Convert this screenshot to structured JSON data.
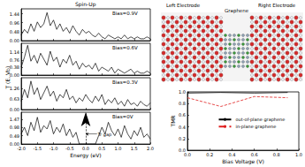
{
  "chart_data": [
    {
      "type": "line",
      "title": "Spin-Up",
      "annotation": "Bias=0.9V",
      "color": "#000000",
      "tick_labels": "y",
      "x": [
        -2,
        -1.9,
        -1.8,
        -1.7,
        -1.6,
        -1.5,
        -1.4,
        -1.3,
        -1.2,
        -1.1,
        -1,
        -0.9,
        -0.8,
        -0.7,
        -0.6,
        -0.5,
        -0.4,
        -0.3,
        -0.2,
        -0.1,
        0,
        0.1,
        0.2,
        0.3,
        0.4,
        0.5,
        0.6,
        0.7,
        0.8,
        0.9,
        1,
        1.1,
        1.2,
        1.3,
        1.4,
        1.5,
        1.6,
        1.7,
        1.8,
        1.9,
        2
      ],
      "values": [
        0.3,
        0.6,
        0.4,
        0.9,
        0.5,
        1.0,
        0.7,
        0.9,
        1.5,
        0.8,
        1.1,
        0.6,
        0.9,
        0.5,
        0.7,
        0.4,
        0.8,
        0.5,
        0.3,
        0.6,
        0.4,
        0.5,
        0.3,
        0.2,
        0.4,
        0.2,
        0.1,
        0.3,
        0.2,
        0.1,
        0.2,
        0.1,
        0.3,
        0.1,
        0.2,
        0.1,
        0.2,
        0.1,
        0.1,
        0.2,
        0.1
      ],
      "xlim": [
        -2,
        2
      ],
      "xticks": [
        {
          "value": -2,
          "label": "-2.0"
        },
        -1.5,
        {
          "value": -1,
          "label": "-1.0"
        },
        -0.5,
        {
          "value": 0,
          "label": "0.0"
        },
        0.5,
        {
          "value": 1,
          "label": "1.0"
        },
        1.5,
        {
          "value": 2,
          "label": "2.0"
        }
      ],
      "ylim": [
        0,
        1.7
      ],
      "yticks": [
        {
          "value": 0,
          "label": "0.00"
        },
        0.48,
        0.96,
        1.44
      ]
    },
    {
      "type": "line",
      "annotation": "Bias=0.6V",
      "color": "#000000",
      "tick_labels": "y",
      "x": [
        -2,
        -1.9,
        -1.8,
        -1.7,
        -1.6,
        -1.5,
        -1.4,
        -1.3,
        -1.2,
        -1.1,
        -1,
        -0.9,
        -0.8,
        -0.7,
        -0.6,
        -0.5,
        -0.4,
        -0.3,
        -0.2,
        -0.1,
        0,
        0.1,
        0.2,
        0.3,
        0.4,
        0.5,
        0.6,
        0.7,
        0.8,
        0.9,
        1,
        1.1,
        1.2,
        1.3,
        1.4,
        1.5,
        1.6,
        1.7,
        1.8,
        1.9,
        2
      ],
      "values": [
        0.4,
        0.9,
        1.5,
        0.7,
        1.0,
        0.6,
        1.1,
        0.8,
        0.5,
        1.2,
        0.7,
        0.9,
        0.4,
        0.8,
        0.6,
        1.0,
        0.5,
        0.7,
        0.3,
        0.6,
        0.4,
        0.5,
        0.3,
        0.6,
        0.2,
        0.4,
        0.3,
        0.2,
        0.4,
        0.1,
        0.3,
        0.2,
        0.1,
        0.2,
        0.3,
        0.1,
        0.2,
        0.1,
        0.1,
        0.2,
        0.1
      ],
      "xlim": [
        -2,
        2
      ],
      "xticks": [
        {
          "value": -2,
          "label": "-2.0"
        },
        -1.5,
        {
          "value": -1,
          "label": "-1.0"
        },
        -0.5,
        {
          "value": 0,
          "label": "0.0"
        },
        0.5,
        {
          "value": 1,
          "label": "1.0"
        },
        1.5,
        {
          "value": 2,
          "label": "2.0"
        }
      ],
      "ylim": [
        0,
        1.6
      ],
      "yticks": [
        {
          "value": 0,
          "label": "0.00"
        },
        0.38,
        0.76,
        1.14
      ]
    },
    {
      "type": "line",
      "annotation": "Bias=0.3V",
      "color": "#000000",
      "tick_labels": "y",
      "x": [
        -2,
        -1.9,
        -1.8,
        -1.7,
        -1.6,
        -1.5,
        -1.4,
        -1.3,
        -1.2,
        -1.1,
        -1,
        -0.9,
        -0.8,
        -0.7,
        -0.6,
        -0.5,
        -0.4,
        -0.3,
        -0.2,
        -0.1,
        0,
        0.1,
        0.2,
        0.3,
        0.4,
        0.5,
        0.6,
        0.7,
        0.8,
        0.9,
        1,
        1.1,
        1.2,
        1.3,
        1.4,
        1.5,
        1.6,
        1.7,
        1.8,
        1.9,
        2
      ],
      "values": [
        0.5,
        1.2,
        0.7,
        1.7,
        0.9,
        1.3,
        0.6,
        1.0,
        1.4,
        0.8,
        1.1,
        0.5,
        0.9,
        0.7,
        1.2,
        0.6,
        0.8,
        0.4,
        0.7,
        0.5,
        0.9,
        0.6,
        0.4,
        0.8,
        0.5,
        0.9,
        0.3,
        0.6,
        0.4,
        0.7,
        0.3,
        0.5,
        0.2,
        0.6,
        0.3,
        0.4,
        0.2,
        0.5,
        0.3,
        0.2,
        0.4
      ],
      "xlim": [
        -2,
        2
      ],
      "xticks": [
        {
          "value": -2,
          "label": "-2.0"
        },
        -1.5,
        {
          "value": -1,
          "label": "-1.0"
        },
        -0.5,
        {
          "value": 0,
          "label": "0.0"
        },
        0.5,
        {
          "value": 1,
          "label": "1.0"
        },
        1.5,
        {
          "value": 2,
          "label": "2.0"
        }
      ],
      "ylim": [
        0,
        1.9
      ],
      "yticks": [
        {
          "value": 0,
          "label": "0.00"
        },
        0.63,
        1.26
      ]
    },
    {
      "type": "line",
      "annotation": "Bias=0V",
      "color": "#000000",
      "xlabel": "Energy (eV)",
      "ylabel": "T (E, Vb)",
      "vline": 0,
      "annotations": [
        {
          "text": "Tr gap",
          "x": 0.35,
          "y": 0.6
        }
      ],
      "x": [
        -2,
        -1.9,
        -1.8,
        -1.7,
        -1.6,
        -1.5,
        -1.4,
        -1.3,
        -1.2,
        -1.1,
        -1,
        -0.9,
        -0.8,
        -0.7,
        -0.6,
        -0.5,
        -0.4,
        -0.3,
        -0.2,
        -0.1,
        0,
        0.1,
        0.2,
        0.3,
        0.4,
        0.5,
        0.6,
        0.7,
        0.8,
        0.9,
        1,
        1.1,
        1.2,
        1.3,
        1.4,
        1.5,
        1.6,
        1.7,
        1.8,
        1.9,
        2
      ],
      "values": [
        0.6,
        1.0,
        0.5,
        1.3,
        0.8,
        1.6,
        0.7,
        1.1,
        0.9,
        1.4,
        0.6,
        1.0,
        0.7,
        1.2,
        0.5,
        0.9,
        0.4,
        0.7,
        0,
        0,
        0,
        0,
        0,
        0,
        0.5,
        1.0,
        0.6,
        1.3,
        0.8,
        0.5,
        0.9,
        0.4,
        1.1,
        0.6,
        0.3,
        0.8,
        0.5,
        1.0,
        0.4,
        0.6,
        0.3
      ],
      "xlim": [
        -2,
        2
      ],
      "xticks": [
        {
          "value": -2,
          "label": "-2.0"
        },
        -1.5,
        {
          "value": -1,
          "label": "-1.0"
        },
        -0.5,
        {
          "value": 0,
          "label": "0.0"
        },
        0.5,
        {
          "value": 1,
          "label": "1.0"
        },
        1.5,
        {
          "value": 2,
          "label": "2.0"
        }
      ],
      "ylim": [
        0,
        1.9
      ],
      "yticks": [
        {
          "value": 0,
          "label": "0.00"
        },
        0.49,
        0.98,
        1.47
      ]
    },
    {
      "type": "line",
      "xlabel": "Bias Voltage (V)",
      "ylabel": "TMR",
      "legend": "center",
      "x": [
        0,
        0.3,
        0.6,
        0.9
      ],
      "series": [
        {
          "name": "out-of-plane graphene",
          "color": "#000000",
          "line_style": "solid",
          "values": [
            0.98,
            0.99,
            0.98,
            0.99
          ]
        },
        {
          "name": "in-plane graphene",
          "color": "#e02020",
          "line_style": "dashed",
          "values": [
            0.9,
            0.75,
            0.92,
            0.9
          ]
        }
      ],
      "xlim": [
        0,
        1
      ],
      "xticks": [
        {
          "value": 0,
          "label": "0.0"
        },
        0.2,
        0.4,
        0.6,
        0.8,
        {
          "value": 1,
          "label": "1.0"
        }
      ],
      "ylim": [
        0,
        1
      ],
      "yticks": [
        {
          "value": 0,
          "label": "0.0"
        },
        0.2,
        0.4,
        0.6,
        0.8,
        {
          "value": 1,
          "label": "1.0"
        }
      ]
    }
  ],
  "image": {
    "labels": [
      "Left Electrode",
      "Graphene",
      "Right Electrode"
    ]
  }
}
